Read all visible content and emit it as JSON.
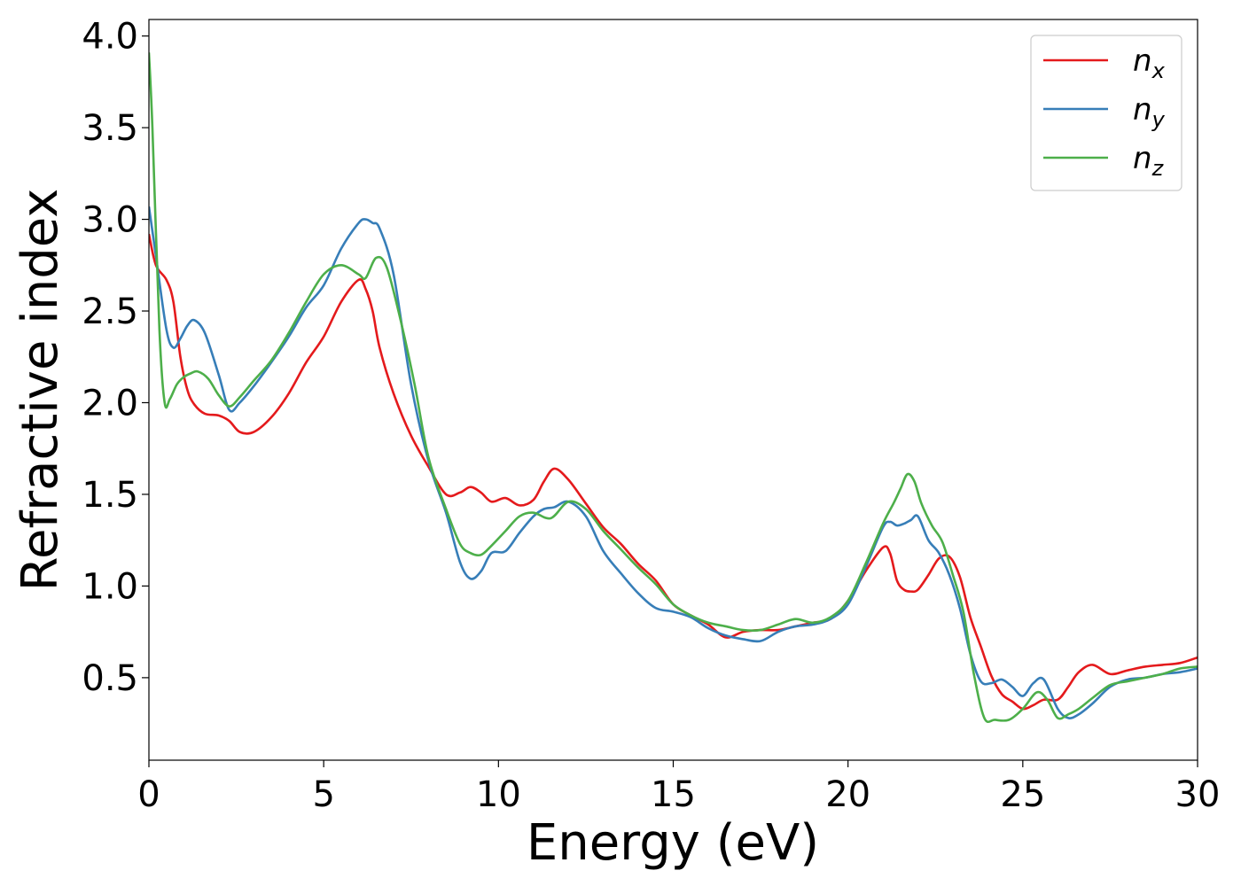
{
  "chart_data": {
    "type": "line",
    "xlabel": "Energy (eV)",
    "ylabel": "Refractive index",
    "xlim": [
      0,
      30
    ],
    "ylim": [
      0.05,
      4.09
    ],
    "xticks": [
      0,
      5,
      10,
      15,
      20,
      25,
      30
    ],
    "xtick_labels": [
      "0",
      "5",
      "10",
      "15",
      "20",
      "25",
      "30"
    ],
    "yticks": [
      0.5,
      1.0,
      1.5,
      2.0,
      2.5,
      3.0,
      3.5,
      4.0
    ],
    "ytick_labels": [
      "0.5",
      "1.0",
      "1.5",
      "2.0",
      "2.5",
      "3.0",
      "3.5",
      "4.0"
    ],
    "grid": false,
    "legend_position": "top-right",
    "series": [
      {
        "name": "n_x",
        "symbol": "n",
        "subscript": "x",
        "color": "#e41a1c",
        "x": [
          0,
          0.2,
          0.5,
          0.7,
          0.9,
          1.1,
          1.3,
          1.6,
          2.0,
          2.3,
          2.6,
          3.0,
          3.5,
          4.0,
          4.5,
          5.0,
          5.5,
          6.0,
          6.2,
          6.4,
          6.6,
          7.0,
          7.5,
          8.0,
          8.5,
          8.9,
          9.2,
          9.5,
          9.8,
          10.2,
          10.6,
          11.0,
          11.3,
          11.6,
          12.0,
          12.5,
          13.0,
          13.5,
          14.0,
          14.5,
          15.0,
          15.5,
          16.0,
          16.5,
          17.0,
          17.5,
          18.0,
          18.5,
          19.0,
          19.5,
          20.0,
          20.5,
          21.0,
          21.2,
          21.4,
          21.6,
          21.8,
          22.0,
          22.3,
          22.6,
          22.9,
          23.2,
          23.5,
          23.8,
          24.1,
          24.4,
          24.7,
          25.0,
          25.3,
          25.6,
          26.0,
          26.3,
          26.6,
          27.0,
          27.5,
          28.0,
          28.5,
          29.0,
          29.5,
          30.0
        ],
        "y": [
          2.92,
          2.75,
          2.67,
          2.55,
          2.25,
          2.07,
          1.99,
          1.94,
          1.93,
          1.9,
          1.84,
          1.84,
          1.92,
          2.05,
          2.22,
          2.36,
          2.55,
          2.67,
          2.62,
          2.5,
          2.3,
          2.05,
          1.82,
          1.65,
          1.5,
          1.51,
          1.54,
          1.51,
          1.46,
          1.48,
          1.44,
          1.47,
          1.57,
          1.64,
          1.58,
          1.45,
          1.32,
          1.23,
          1.12,
          1.03,
          0.9,
          0.84,
          0.79,
          0.72,
          0.75,
          0.76,
          0.76,
          0.78,
          0.8,
          0.82,
          0.92,
          1.08,
          1.21,
          1.18,
          1.03,
          0.98,
          0.97,
          0.98,
          1.06,
          1.15,
          1.16,
          1.05,
          0.83,
          0.67,
          0.51,
          0.41,
          0.37,
          0.33,
          0.35,
          0.38,
          0.38,
          0.45,
          0.53,
          0.57,
          0.52,
          0.54,
          0.56,
          0.57,
          0.58,
          0.61
        ]
      },
      {
        "name": "n_y",
        "symbol": "n",
        "subscript": "y",
        "color": "#377eb8",
        "x": [
          0,
          0.2,
          0.5,
          0.7,
          0.9,
          1.1,
          1.3,
          1.6,
          2.0,
          2.3,
          2.6,
          3.0,
          3.5,
          4.0,
          4.5,
          5.0,
          5.5,
          6.0,
          6.2,
          6.4,
          6.6,
          7.0,
          7.5,
          8.0,
          8.5,
          8.9,
          9.2,
          9.5,
          9.8,
          10.2,
          10.6,
          11.0,
          11.3,
          11.6,
          12.0,
          12.5,
          13.0,
          13.5,
          14.0,
          14.5,
          15.0,
          15.5,
          16.0,
          16.5,
          17.0,
          17.5,
          18.0,
          18.5,
          19.0,
          19.5,
          20.0,
          20.5,
          21.0,
          21.2,
          21.4,
          21.6,
          21.8,
          22.0,
          22.3,
          22.6,
          22.9,
          23.2,
          23.5,
          23.8,
          24.1,
          24.4,
          24.7,
          25.0,
          25.3,
          25.6,
          26.0,
          26.3,
          26.6,
          27.0,
          27.5,
          28.0,
          28.5,
          29.0,
          29.5,
          30.0
        ],
        "y": [
          3.07,
          2.8,
          2.4,
          2.3,
          2.35,
          2.42,
          2.45,
          2.38,
          2.15,
          1.96,
          2.0,
          2.09,
          2.22,
          2.36,
          2.52,
          2.64,
          2.84,
          2.98,
          3.0,
          2.98,
          2.95,
          2.7,
          2.1,
          1.68,
          1.4,
          1.13,
          1.04,
          1.08,
          1.18,
          1.19,
          1.29,
          1.38,
          1.42,
          1.43,
          1.46,
          1.38,
          1.19,
          1.07,
          0.96,
          0.88,
          0.86,
          0.83,
          0.77,
          0.73,
          0.71,
          0.7,
          0.75,
          0.78,
          0.79,
          0.82,
          0.9,
          1.1,
          1.32,
          1.35,
          1.33,
          1.34,
          1.36,
          1.38,
          1.25,
          1.18,
          1.06,
          0.88,
          0.63,
          0.48,
          0.47,
          0.49,
          0.45,
          0.4,
          0.47,
          0.49,
          0.33,
          0.28,
          0.3,
          0.36,
          0.45,
          0.49,
          0.5,
          0.52,
          0.53,
          0.55
        ]
      },
      {
        "name": "n_z",
        "symbol": "n",
        "subscript": "z",
        "color": "#4daf4a",
        "x": [
          0,
          0.1,
          0.3,
          0.45,
          0.6,
          0.8,
          1.0,
          1.2,
          1.4,
          1.7,
          2.0,
          2.3,
          2.6,
          3.0,
          3.5,
          4.0,
          4.5,
          5.0,
          5.5,
          6.0,
          6.2,
          6.5,
          6.8,
          7.2,
          7.6,
          8.0,
          8.5,
          8.9,
          9.2,
          9.5,
          9.8,
          10.2,
          10.6,
          11.0,
          11.5,
          12.0,
          12.5,
          13.0,
          13.5,
          14.0,
          14.5,
          15.0,
          15.5,
          16.0,
          16.5,
          17.0,
          17.5,
          18.0,
          18.5,
          19.0,
          19.5,
          20.0,
          20.5,
          21.0,
          21.3,
          21.5,
          21.7,
          21.9,
          22.1,
          22.4,
          22.7,
          23.0,
          23.3,
          23.6,
          23.9,
          24.2,
          24.6,
          25.0,
          25.4,
          25.7,
          26.0,
          26.3,
          26.6,
          27.0,
          27.5,
          28.0,
          28.5,
          29.0,
          29.5,
          30.0
        ],
        "y": [
          3.91,
          3.5,
          2.4,
          2.0,
          2.02,
          2.1,
          2.14,
          2.16,
          2.17,
          2.13,
          2.04,
          1.98,
          2.03,
          2.12,
          2.23,
          2.38,
          2.55,
          2.7,
          2.75,
          2.7,
          2.68,
          2.79,
          2.74,
          2.45,
          2.1,
          1.7,
          1.42,
          1.23,
          1.18,
          1.17,
          1.22,
          1.3,
          1.38,
          1.4,
          1.37,
          1.46,
          1.42,
          1.3,
          1.2,
          1.1,
          1.01,
          0.9,
          0.84,
          0.8,
          0.78,
          0.76,
          0.76,
          0.79,
          0.82,
          0.8,
          0.83,
          0.92,
          1.12,
          1.34,
          1.45,
          1.53,
          1.61,
          1.57,
          1.45,
          1.33,
          1.24,
          1.06,
          0.86,
          0.52,
          0.28,
          0.27,
          0.27,
          0.33,
          0.42,
          0.38,
          0.28,
          0.3,
          0.33,
          0.39,
          0.46,
          0.48,
          0.5,
          0.52,
          0.55,
          0.56
        ]
      }
    ]
  }
}
